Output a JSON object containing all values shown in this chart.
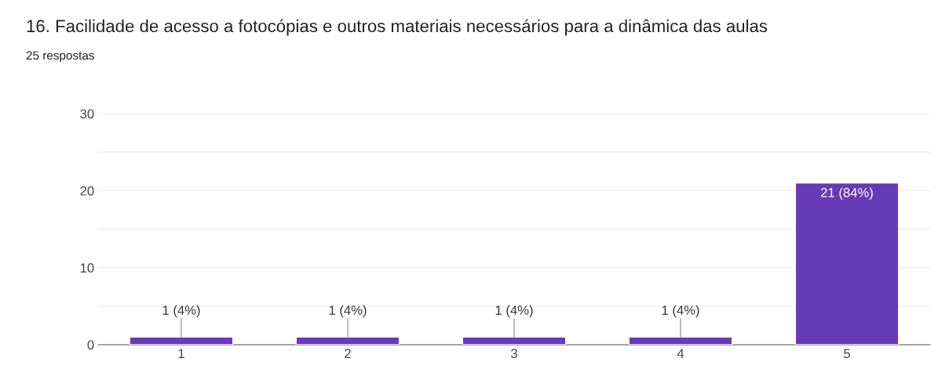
{
  "chart_data": {
    "type": "bar",
    "title": "16. Facilidade de acesso a fotocópias e outros materiais necessários para a dinâmica das aulas",
    "subtitle": "25 respostas",
    "categories": [
      "1",
      "2",
      "3",
      "4",
      "5"
    ],
    "values": [
      1,
      1,
      1,
      1,
      21
    ],
    "value_labels": [
      "1 (4%)",
      "1 (4%)",
      "1 (4%)",
      "1 (4%)",
      "21 (84%)"
    ],
    "color": "#673ab7",
    "ylim": [
      0,
      30
    ],
    "yticks": [
      0,
      {
        "value": 5,
        "label": null
      },
      10,
      {
        "value": 15,
        "label": null
      },
      20,
      {
        "value": 25,
        "label": null
      },
      30
    ],
    "grid": "y"
  }
}
